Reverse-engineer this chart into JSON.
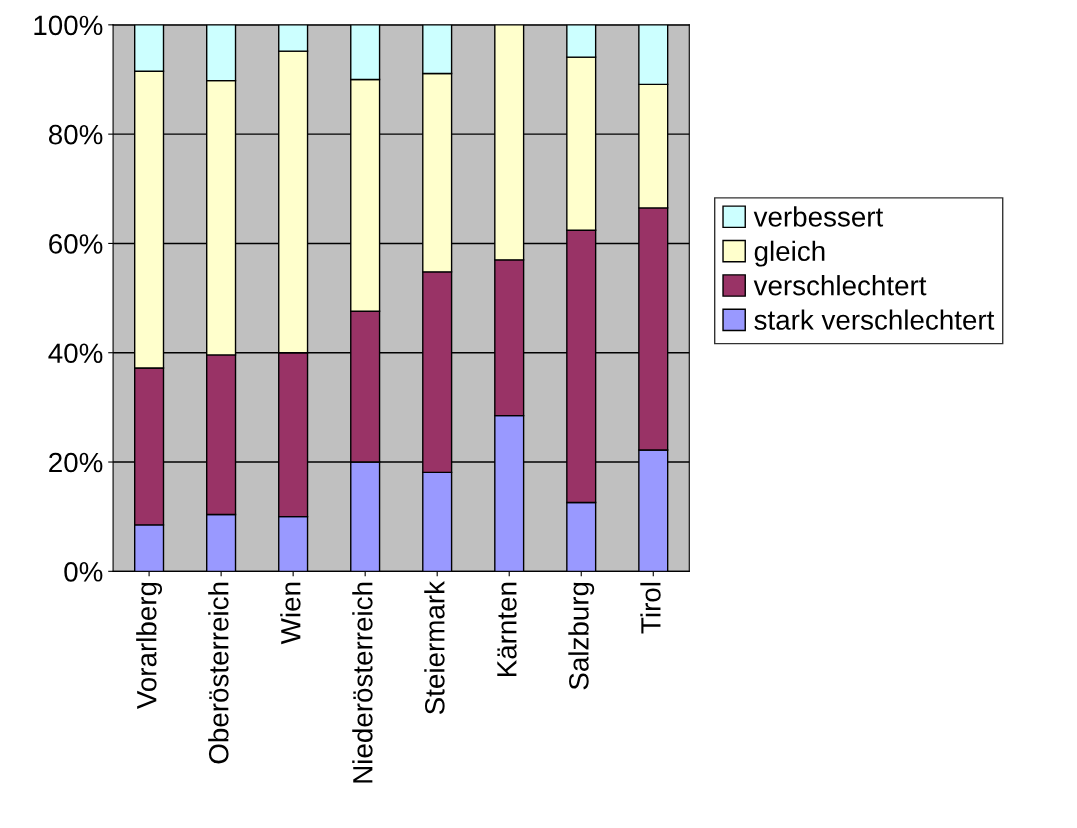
{
  "chart_data": {
    "type": "bar",
    "stacked": true,
    "categories": [
      "Vorarlberg",
      "Oberösterreich",
      "Wien",
      "Niederösterreich",
      "Steiermark",
      "Kärnten",
      "Salzburg",
      "Tirol"
    ],
    "series": [
      {
        "name": "stark verschlechtert",
        "color": "#9999ff",
        "values": [
          8.5,
          10.4,
          10.0,
          20.0,
          18.1,
          28.5,
          12.6,
          22.2
        ]
      },
      {
        "name": "verschlechtert",
        "color": "#993366",
        "values": [
          28.7,
          29.2,
          30.0,
          27.6,
          36.7,
          28.5,
          49.8,
          44.3
        ]
      },
      {
        "name": "gleich",
        "color": "#ffffcc",
        "values": [
          54.3,
          50.2,
          55.2,
          42.4,
          36.3,
          43.0,
          31.7,
          22.6
        ]
      },
      {
        "name": "verbessert",
        "color": "#ccffff",
        "values": [
          8.5,
          10.2,
          4.8,
          10.0,
          8.9,
          null,
          5.9,
          10.9
        ]
      }
    ],
    "ylim": [
      0,
      100
    ],
    "yticks": [
      {
        "value": 0,
        "label": "0%"
      },
      {
        "value": 20,
        "label": "20%"
      },
      {
        "value": 40,
        "label": "40%"
      },
      {
        "value": 60,
        "label": "60%"
      },
      {
        "value": 80,
        "label": "80%"
      },
      {
        "value": 100,
        "label": "100%"
      }
    ],
    "grid": "y",
    "legend": "right"
  }
}
